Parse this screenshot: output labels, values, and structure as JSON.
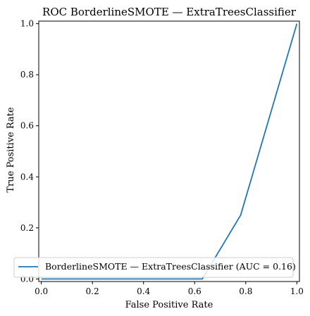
{
  "chart_data": {
    "type": "line",
    "title": "ROC BorderlineSMOTE — ExtraTreesClassifier",
    "xlabel": "False Positive Rate",
    "ylabel": "True Positive Rate",
    "xlim": [
      -0.01,
      1.01
    ],
    "ylim": [
      -0.01,
      1.01
    ],
    "x_ticks": [
      "0.0",
      "0.2",
      "0.4",
      "0.6",
      "0.8",
      "1.0"
    ],
    "y_ticks": [
      "0.0",
      "0.2",
      "0.4",
      "0.6",
      "0.8",
      "1.0"
    ],
    "grid": false,
    "legend_position": "lower-right",
    "series": [
      {
        "name": "BorderlineSMOTE — ExtraTreesClassifier (AUC = 0.16)",
        "color": "#1f77b4",
        "x": [
          0.0,
          0.63,
          0.78,
          1.0
        ],
        "y": [
          0.0,
          0.0,
          0.25,
          1.0
        ]
      }
    ]
  }
}
